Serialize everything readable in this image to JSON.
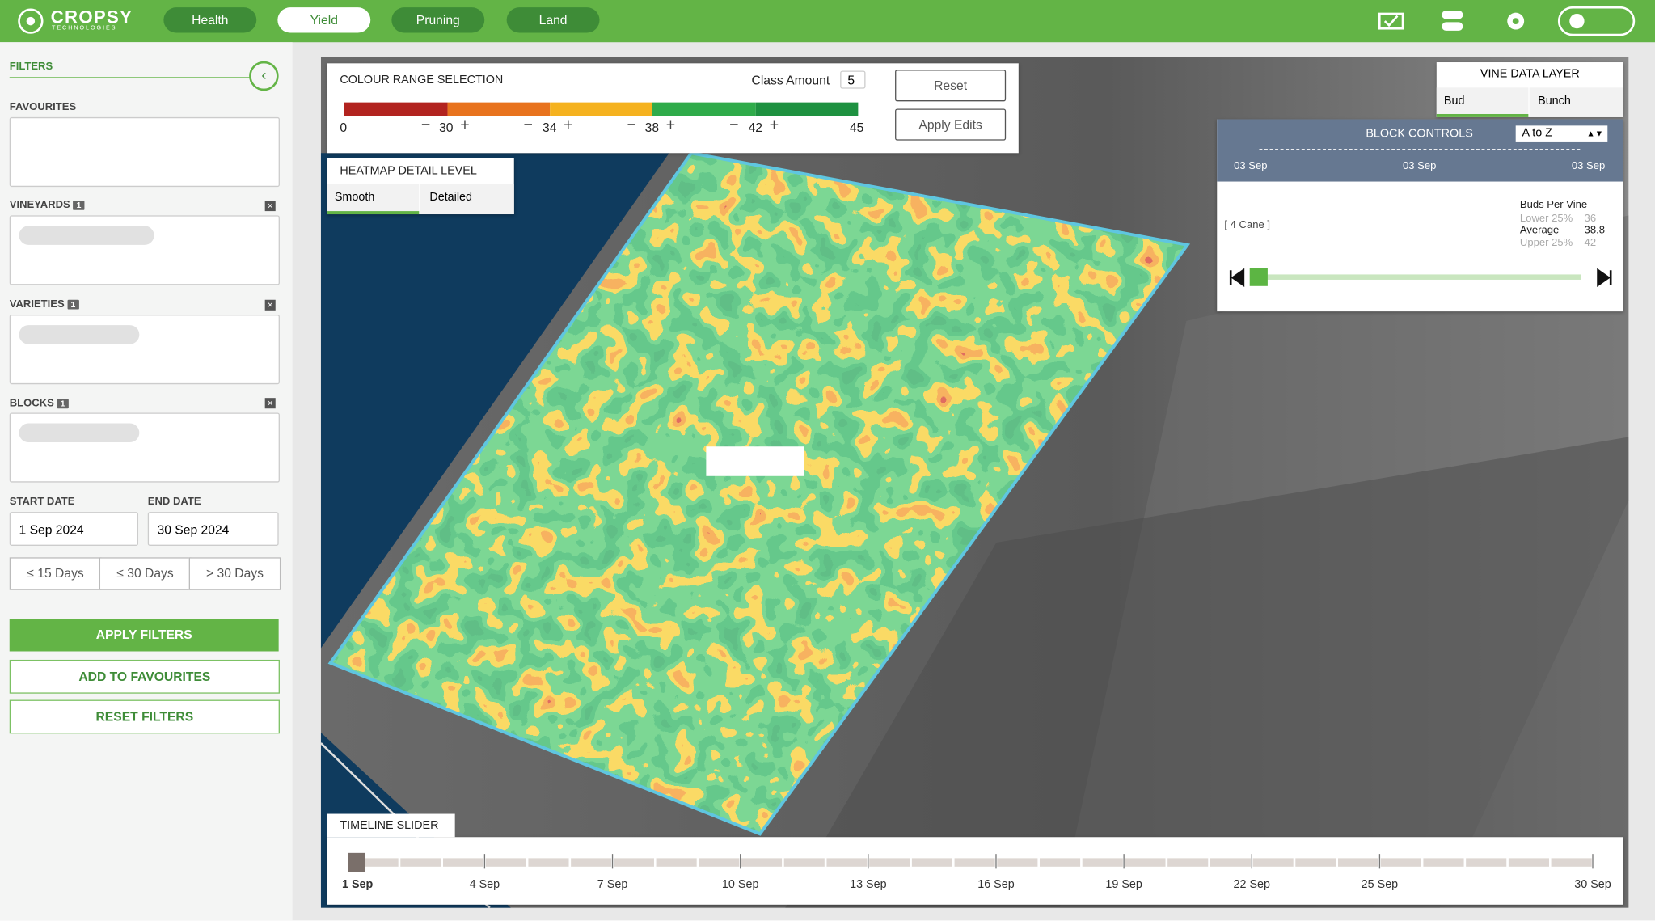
{
  "header": {
    "logo": "CROPSY",
    "logo_sub": "TECHNOLOGIES",
    "tabs": [
      "Health",
      "Yield",
      "Pruning",
      "Land"
    ]
  },
  "sidebar": {
    "filters": "FILTERS",
    "favourites": "FAVOURITES",
    "vineyards": {
      "label": "VINEYARDS",
      "count": "1"
    },
    "varieties": {
      "label": "VARIETIES",
      "count": "1"
    },
    "blocks": {
      "label": "BLOCKS",
      "count": "1"
    },
    "start_date": {
      "label": "START DATE",
      "value": "1 Sep 2024"
    },
    "end_date": {
      "label": "END DATE",
      "value": "30 Sep 2024"
    },
    "ranges": [
      "≤ 15 Days",
      "≤ 30 Days",
      "> 30 Days"
    ],
    "apply": "APPLY FILTERS",
    "add_favourites": "ADD TO FAVOURITES",
    "reset": "RESET FILTERS"
  },
  "colour_range": {
    "title": "COLOUR RANGE SELECTION",
    "class_amount_label": "Class Amount",
    "class_amount": "5",
    "thresholds": [
      "0",
      "30",
      "34",
      "38",
      "42",
      "45"
    ],
    "reset": "Reset",
    "apply": "Apply Edits"
  },
  "heatmap": {
    "title": "HEATMAP DETAIL LEVEL",
    "options": [
      "Smooth",
      "Detailed"
    ]
  },
  "vine_layer": {
    "title": "VINE DATA LAYER",
    "tabs": [
      "Bud",
      "Bunch"
    ]
  },
  "block_controls": {
    "title": "BLOCK CONTROLS",
    "sort": "A to Z",
    "dates": [
      "03 Sep",
      "03 Sep",
      "03 Sep"
    ],
    "cane": "[ 4 Cane ]",
    "stats": {
      "title": "Buds Per Vine",
      "rows": [
        {
          "label": "Lower 25%",
          "value": "36"
        },
        {
          "label": "Average",
          "value": "38.8"
        },
        {
          "label": "Upper 25%",
          "value": "42"
        }
      ]
    }
  },
  "timeline": {
    "title": "TIMELINE SLIDER",
    "labels": [
      "1 Sep",
      "4 Sep",
      "7 Sep",
      "10 Sep",
      "13 Sep",
      "16 Sep",
      "19 Sep",
      "22 Sep",
      "25 Sep",
      "30 Sep"
    ]
  }
}
